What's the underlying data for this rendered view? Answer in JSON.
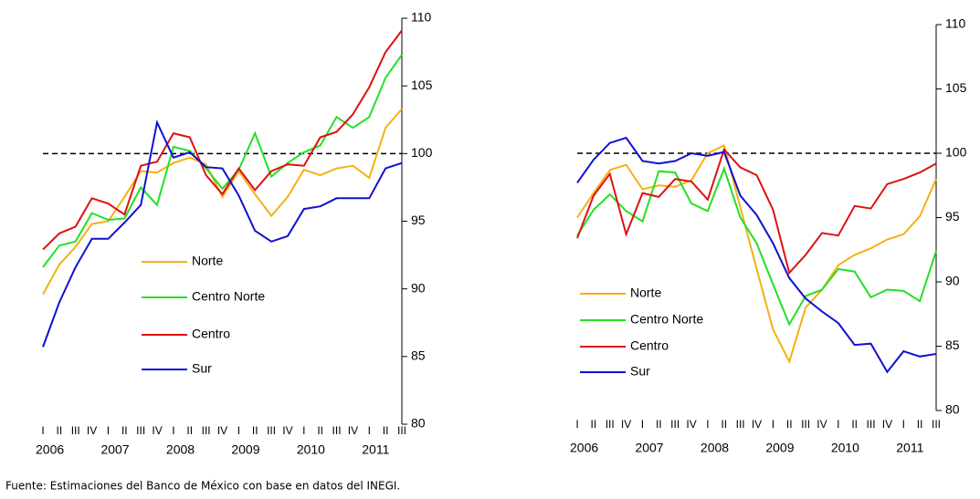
{
  "chart_data": [
    {
      "type": "line",
      "categories": [
        "I",
        "II",
        "III",
        "IV",
        "I",
        "II",
        "III",
        "IV",
        "I",
        "II",
        "III",
        "IV",
        "I",
        "II",
        "III",
        "IV",
        "I",
        "II",
        "III",
        "IV",
        "I",
        "II",
        "III"
      ],
      "year_labels": [
        "2006",
        "2007",
        "2008",
        "2009",
        "2010",
        "2011"
      ],
      "ylim": [
        80,
        110
      ],
      "yticks": [
        80,
        85,
        90,
        95,
        100,
        105,
        110
      ],
      "reference_line": 100,
      "series": [
        {
          "name": "Norte",
          "color": "#f5b014",
          "values": [
            89.6,
            91.8,
            93.1,
            94.8,
            95.0,
            96.8,
            98.7,
            98.6,
            99.3,
            99.7,
            99.2,
            96.8,
            98.7,
            97.0,
            95.4,
            96.8,
            98.8,
            98.4,
            98.9,
            99.1,
            98.2,
            101.9,
            103.3
          ]
        },
        {
          "name": "Centro Norte",
          "color": "#22e022",
          "values": [
            91.6,
            93.2,
            93.5,
            95.6,
            95.1,
            95.2,
            97.5,
            96.2,
            100.5,
            100.2,
            98.9,
            97.4,
            98.8,
            101.5,
            98.3,
            99.3,
            100.1,
            100.6,
            102.7,
            101.9,
            102.7,
            105.6,
            107.3
          ]
        },
        {
          "name": "Centro",
          "color": "#e01010",
          "values": [
            92.9,
            94.1,
            94.6,
            96.7,
            96.3,
            95.5,
            99.1,
            99.4,
            101.5,
            101.2,
            98.4,
            97.0,
            98.9,
            97.3,
            98.7,
            99.2,
            99.1,
            101.2,
            101.6,
            102.9,
            104.9,
            107.5,
            109.1
          ]
        },
        {
          "name": "Sur",
          "color": "#1010d0",
          "values": [
            85.7,
            89.0,
            91.6,
            93.7,
            93.7,
            94.9,
            96.2,
            102.3,
            99.7,
            100.1,
            99.0,
            98.9,
            96.9,
            94.3,
            93.5,
            93.9,
            95.9,
            96.1,
            96.7,
            96.7,
            96.7,
            98.9,
            99.3
          ]
        }
      ]
    },
    {
      "type": "line",
      "categories": [
        "I",
        "II",
        "III",
        "IV",
        "I",
        "II",
        "III",
        "IV",
        "I",
        "II",
        "III",
        "IV",
        "I",
        "II",
        "III",
        "IV",
        "I",
        "II",
        "III",
        "IV",
        "I",
        "II",
        "III"
      ],
      "year_labels": [
        "2006",
        "2007",
        "2008",
        "2009",
        "2010",
        "2011"
      ],
      "ylim": [
        80,
        110
      ],
      "yticks": [
        80,
        85,
        90,
        95,
        100,
        105,
        110
      ],
      "reference_line": 100,
      "series": [
        {
          "name": "Norte",
          "color": "#f5b014",
          "values": [
            95.0,
            96.9,
            98.7,
            99.1,
            97.2,
            97.5,
            97.4,
            97.9,
            100.0,
            100.6,
            95.8,
            91.0,
            86.3,
            83.8,
            88.0,
            89.4,
            91.3,
            92.1,
            92.6,
            93.3,
            93.7,
            95.1,
            98.0
          ]
        },
        {
          "name": "Centro Norte",
          "color": "#22e022",
          "values": [
            93.6,
            95.6,
            96.8,
            95.5,
            94.7,
            98.6,
            98.5,
            96.1,
            95.5,
            98.8,
            95.0,
            93.0,
            89.8,
            86.7,
            88.9,
            89.4,
            91.0,
            90.8,
            88.8,
            89.4,
            89.3,
            88.5,
            92.4
          ]
        },
        {
          "name": "Centro",
          "color": "#e01010",
          "values": [
            93.4,
            96.7,
            98.4,
            93.7,
            96.9,
            96.6,
            98.0,
            97.8,
            96.4,
            100.3,
            98.9,
            98.3,
            95.6,
            90.7,
            92.1,
            93.8,
            93.6,
            95.9,
            95.7,
            97.6,
            98.0,
            98.5,
            99.2
          ]
        },
        {
          "name": "Sur",
          "color": "#1010d0",
          "values": [
            97.7,
            99.5,
            100.8,
            101.2,
            99.4,
            99.2,
            99.4,
            100.0,
            99.8,
            100.1,
            96.7,
            95.2,
            93.0,
            90.3,
            88.7,
            87.7,
            86.8,
            85.1,
            85.2,
            83.0,
            84.6,
            84.2,
            84.4
          ]
        }
      ]
    }
  ],
  "footnote": "Fuente: Estimaciones del Banco de México con base en datos del INEGI."
}
